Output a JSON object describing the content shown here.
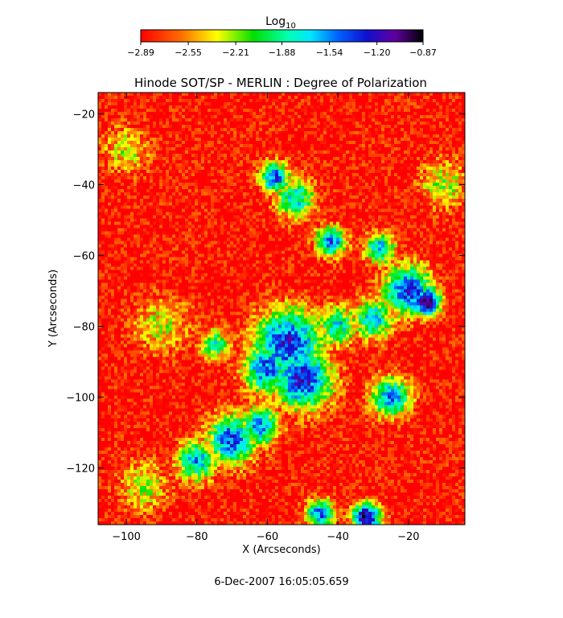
{
  "caption": "6-Dec-2007 16:05:05.659",
  "chart_data": {
    "type": "heatmap",
    "title": "Hinode SOT/SP - MERLIN : Degree of Polarization",
    "xlabel": "X (Arcseconds)",
    "ylabel": "Y (Arcseconds)",
    "xlim": [
      -108,
      -4
    ],
    "ylim": [
      -136,
      -14
    ],
    "x_ticks": [
      -100,
      -80,
      -60,
      -40,
      -20
    ],
    "y_ticks": [
      -120,
      -100,
      -80,
      -60,
      -40,
      -20
    ],
    "x_tick_labels": [
      "−100",
      "−80",
      "−60",
      "−40",
      "−20"
    ],
    "y_tick_labels": [
      "−120",
      "−100",
      "−80",
      "−60",
      "−40",
      "−20"
    ],
    "colorbar": {
      "label_base": "Log",
      "label_sub": "10",
      "range": [
        -2.89,
        -0.87
      ],
      "tick_values": [
        -2.89,
        -2.55,
        -2.21,
        -1.88,
        -1.54,
        -1.2,
        -0.87
      ],
      "tick_labels": [
        "−2.89",
        "−2.55",
        "−2.21",
        "−1.88",
        "−1.54",
        "−1.20",
        "−0.87"
      ],
      "colormap": "rainbow (red = low, black = high)"
    },
    "features": [
      {
        "x": -15,
        "y": -73,
        "value": -0.9,
        "radius": 3
      },
      {
        "x": -20,
        "y": -70,
        "value": -1.25,
        "radius": 5
      },
      {
        "x": -54,
        "y": -85,
        "value": -1.25,
        "radius": 7
      },
      {
        "x": -50,
        "y": -95,
        "value": -1.2,
        "radius": 6
      },
      {
        "x": -60,
        "y": -92,
        "value": -1.4,
        "radius": 5
      },
      {
        "x": -70,
        "y": -112,
        "value": -1.35,
        "radius": 5
      },
      {
        "x": -62,
        "y": -108,
        "value": -1.5,
        "radius": 4
      },
      {
        "x": -80,
        "y": -118,
        "value": -1.55,
        "radius": 4
      },
      {
        "x": -58,
        "y": -38,
        "value": -1.35,
        "radius": 3
      },
      {
        "x": -52,
        "y": -44,
        "value": -1.7,
        "radius": 4
      },
      {
        "x": -42,
        "y": -56,
        "value": -1.35,
        "radius": 3
      },
      {
        "x": -28,
        "y": -58,
        "value": -1.5,
        "radius": 3
      },
      {
        "x": -30,
        "y": -78,
        "value": -1.6,
        "radius": 4
      },
      {
        "x": -25,
        "y": -100,
        "value": -1.45,
        "radius": 4
      },
      {
        "x": -40,
        "y": -80,
        "value": -1.7,
        "radius": 4
      },
      {
        "x": -75,
        "y": -85,
        "value": -1.8,
        "radius": 3
      },
      {
        "x": -32,
        "y": -134,
        "value": -1.0,
        "radius": 3
      },
      {
        "x": -45,
        "y": -133,
        "value": -1.4,
        "radius": 3
      },
      {
        "x": -90,
        "y": -80,
        "value": -2.3,
        "radius": 6
      },
      {
        "x": -100,
        "y": -30,
        "value": -2.3,
        "radius": 5
      },
      {
        "x": -10,
        "y": -40,
        "value": -2.2,
        "radius": 5
      },
      {
        "x": -95,
        "y": -125,
        "value": -2.2,
        "radius": 5
      }
    ]
  }
}
